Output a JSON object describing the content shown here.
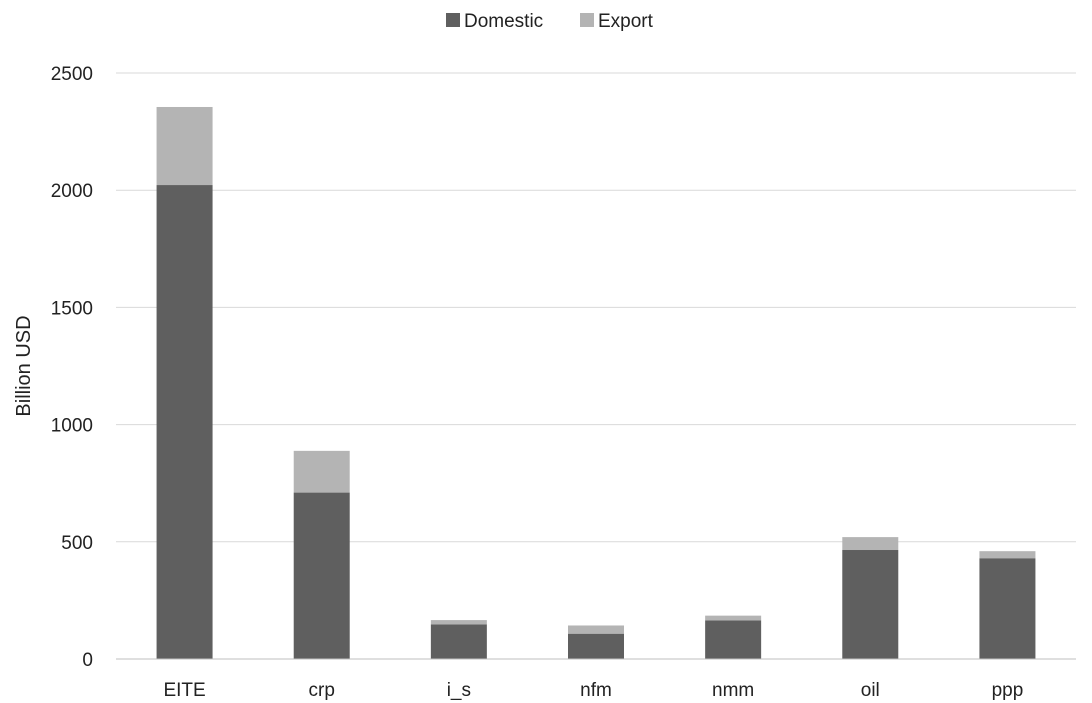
{
  "colors": {
    "domestic": "#5f5f5f",
    "export": "#b4b4b4",
    "grid": "#d9d9d9",
    "axis": "#bfbfbf"
  },
  "chart_data": {
    "type": "bar",
    "stacked": true,
    "title": "",
    "xlabel": "",
    "ylabel": "Billion USD",
    "ylim": [
      0,
      2500
    ],
    "yticks": [
      0,
      500,
      1000,
      1500,
      2000,
      2500
    ],
    "grid": true,
    "legend_position": "top",
    "categories": [
      "EITE",
      "crp",
      "i_s",
      "nfm",
      "nmm",
      "oil",
      "ppp"
    ],
    "series": [
      {
        "name": "Domestic",
        "color": "#5f5f5f",
        "values": [
          2022,
          710,
          148,
          108,
          165,
          465,
          430
        ]
      },
      {
        "name": "Export",
        "color": "#b4b4b4",
        "values": [
          333,
          178,
          18,
          35,
          20,
          55,
          30
        ]
      }
    ]
  }
}
